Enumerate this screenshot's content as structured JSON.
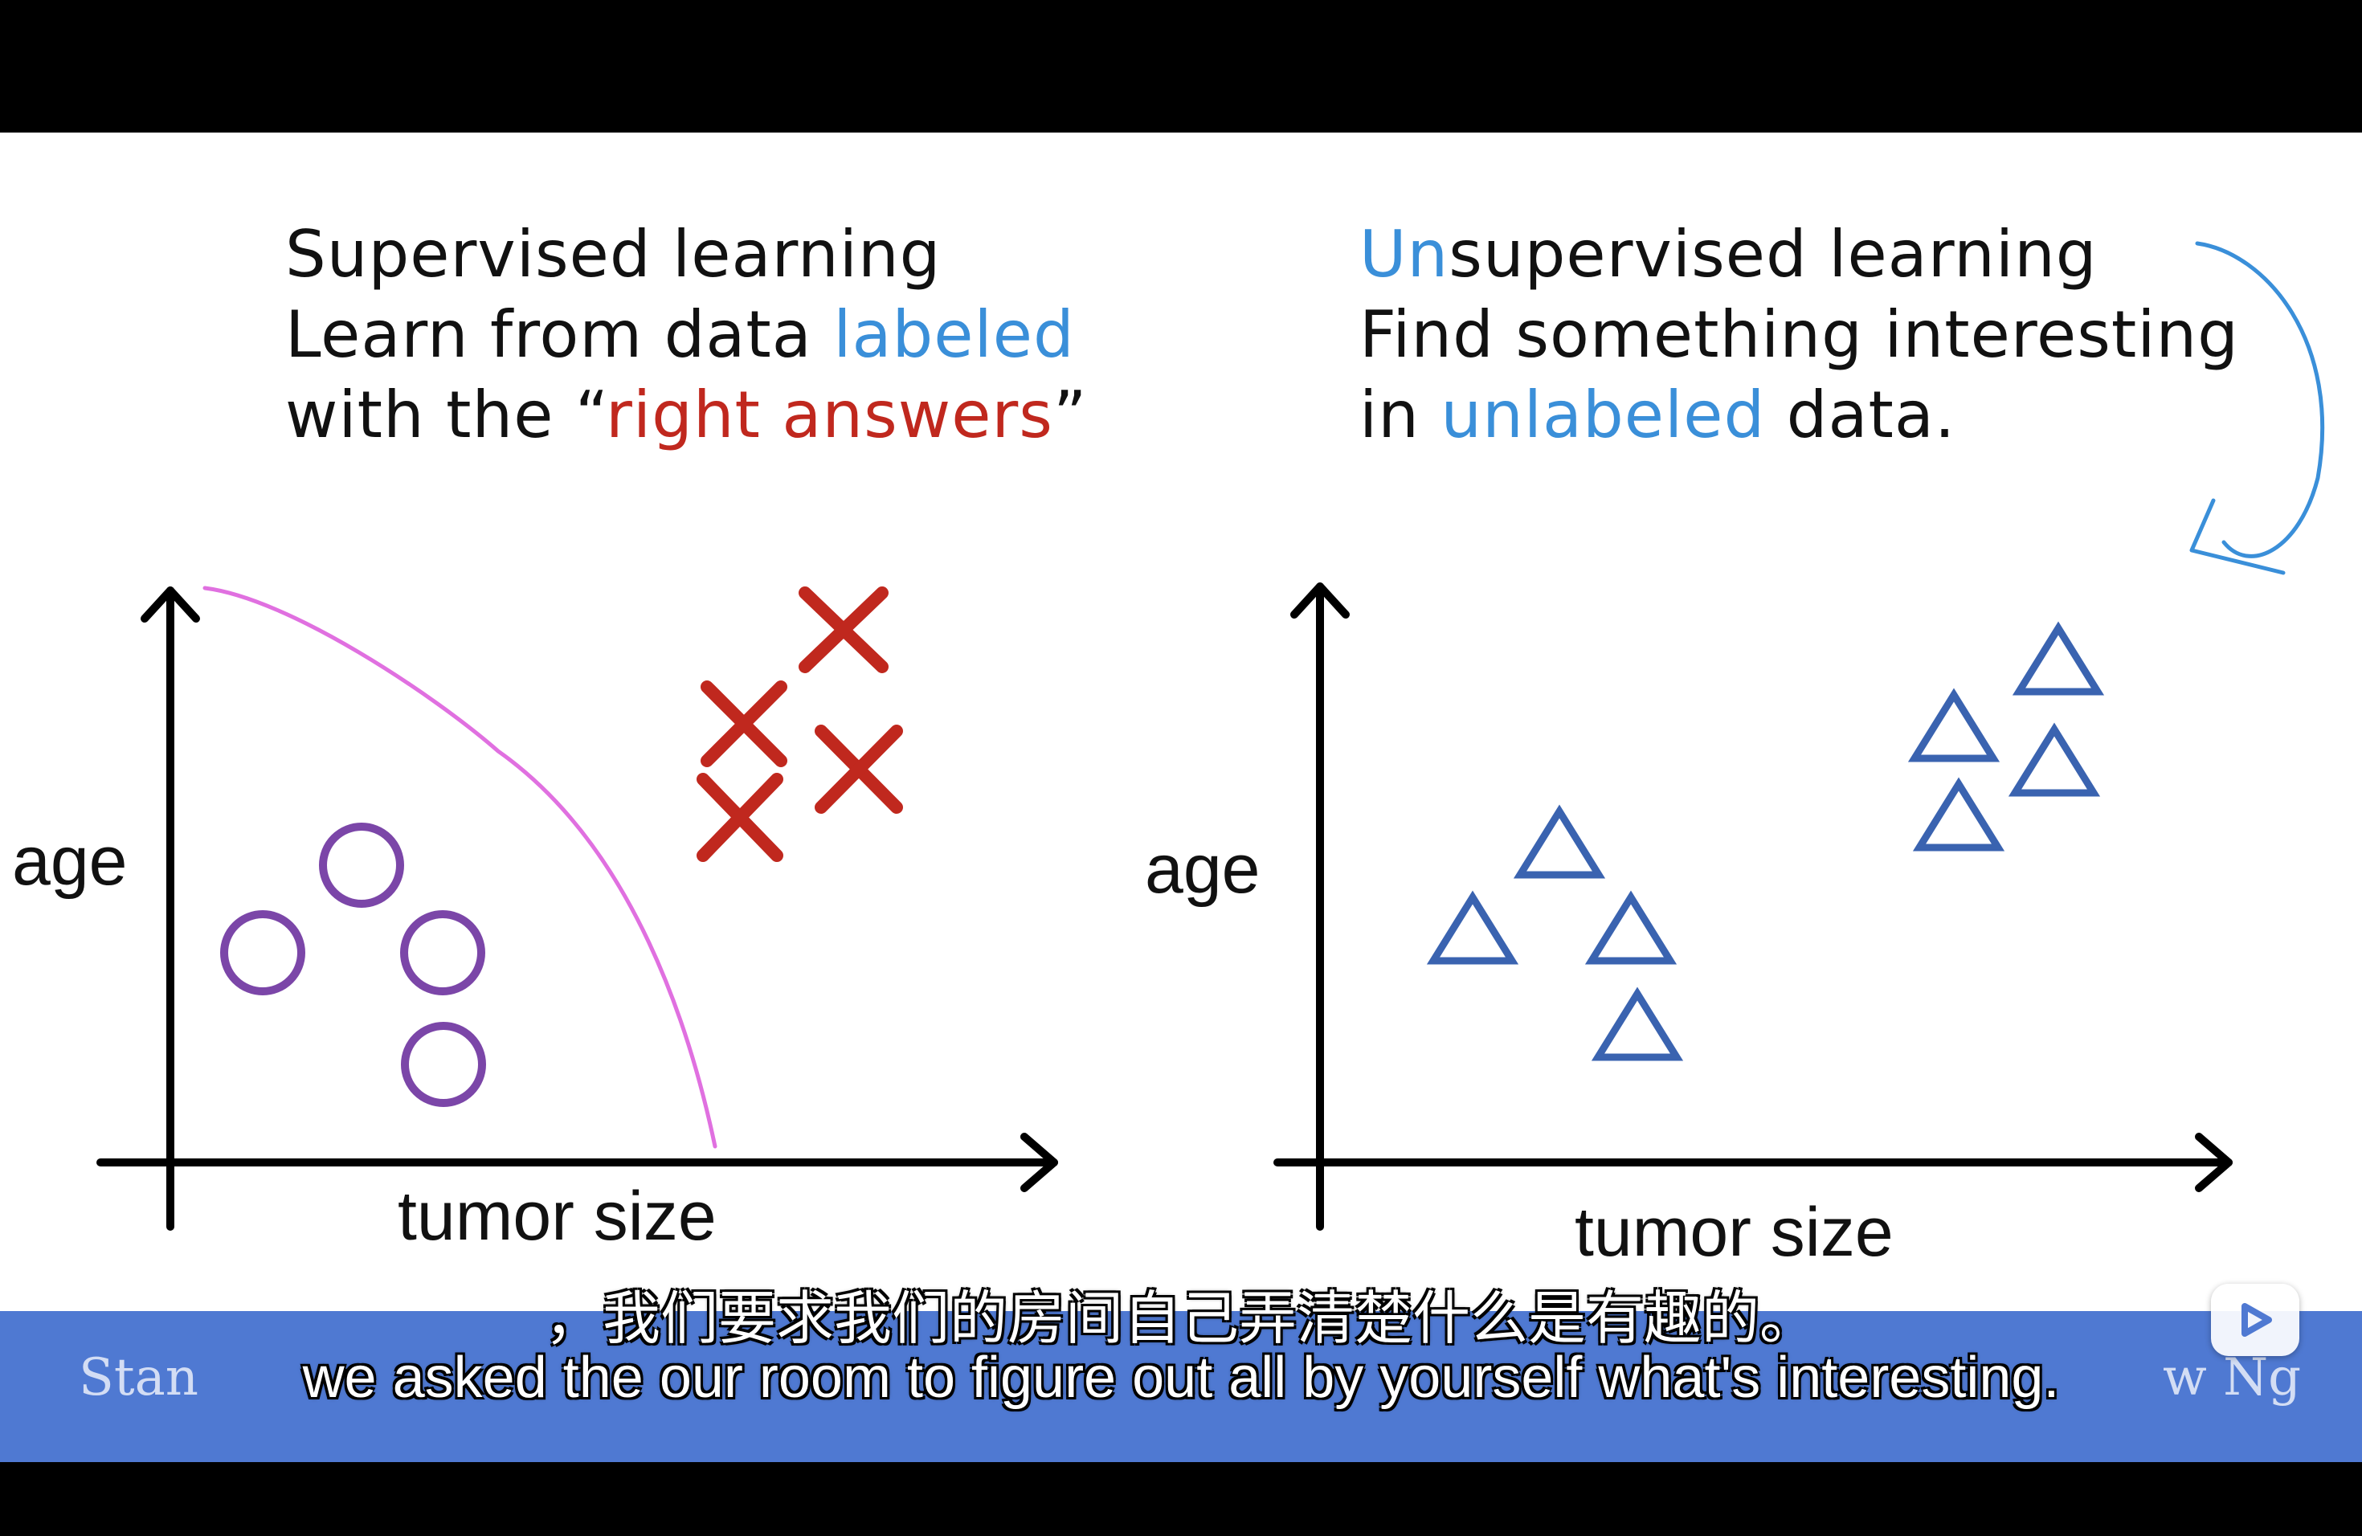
{
  "left_heading": {
    "line1": "Supervised learning",
    "line2_pre": "Learn from data ",
    "line2_hl": "labeled",
    "line3_pre": "with the “",
    "line3_hl": "right answers",
    "line3_post": "”"
  },
  "right_heading": {
    "line1_hl": "Un",
    "line1_rest": "supervised learning",
    "line2": "Find something interesting",
    "line3_pre": "in ",
    "line3_hl": "unlabeled",
    "line3_post": " data."
  },
  "left_plot": {
    "y_label": "age",
    "x_label": "tumor size"
  },
  "right_plot": {
    "y_label": "age",
    "x_label": "tumor size"
  },
  "footer": {
    "watermark_left": "Stan",
    "watermark_right": "w Ng"
  },
  "subtitles": {
    "chinese": "，我们要求我们的房间自己弄清楚什么是有趣的。",
    "english": "we asked the our room to figure out all by yourself what's interesting."
  },
  "icons": {
    "play": "play-icon"
  },
  "colors": {
    "highlight_blue": "#3a8fd9",
    "highlight_red": "#c0281e",
    "circle_purple": "#7b46a8",
    "cross_red": "#c0281e",
    "triangle_blue": "#3a63b0",
    "boundary_pink": "#e070e0",
    "band_blue": "#4f79d2"
  }
}
